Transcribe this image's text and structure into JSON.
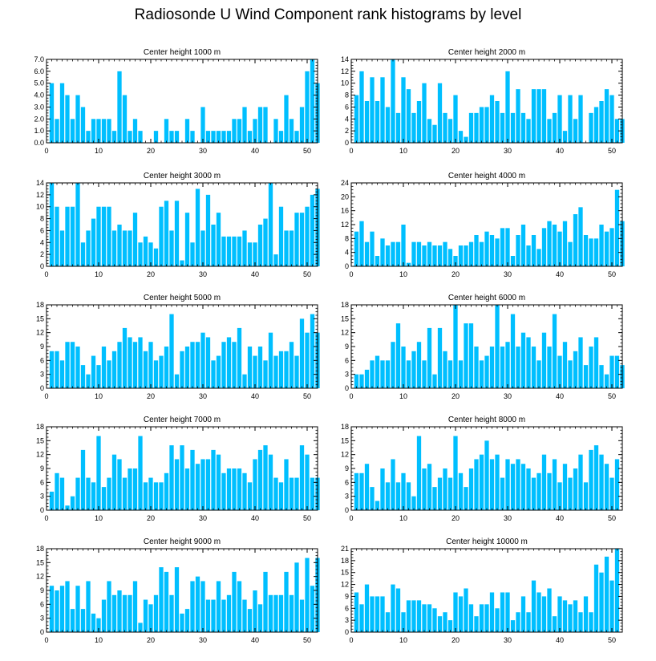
{
  "figure_title": "Radiosonde U Wind Component rank histograms by level",
  "colors": {
    "bar": "#00bfff",
    "axis": "#000000"
  },
  "chart_data": [
    {
      "type": "bar",
      "title": "Center height 1000 m",
      "ylim": [
        0,
        7
      ],
      "yticks": [
        "0.0",
        "1.0",
        "2.0",
        "3.0",
        "4.0",
        "5.0",
        "6.0",
        "7.0"
      ],
      "xlim": [
        0,
        52
      ],
      "xticks": [
        0,
        10,
        20,
        30,
        40,
        50
      ],
      "values": [
        5,
        2,
        5,
        4,
        2,
        4,
        3,
        1,
        2,
        2,
        2,
        2,
        1,
        6,
        4,
        1,
        2,
        1,
        0,
        0,
        1,
        0,
        2,
        1,
        1,
        0,
        2,
        1,
        0,
        3,
        1,
        1,
        1,
        1,
        1,
        2,
        2,
        3,
        1,
        2,
        3,
        3,
        0,
        2,
        1,
        4,
        2,
        1,
        3,
        6,
        7,
        5
      ]
    },
    {
      "type": "bar",
      "title": "Center height 2000 m",
      "ylim": [
        0,
        14
      ],
      "yticks": [
        "0",
        "2",
        "4",
        "6",
        "8",
        "10",
        "12",
        "14"
      ],
      "xlim": [
        0,
        52
      ],
      "xticks": [
        0,
        10,
        20,
        30,
        40,
        50
      ],
      "values": [
        8,
        12,
        7,
        11,
        7,
        11,
        6,
        14,
        5,
        11,
        9,
        5,
        7,
        10,
        4,
        3,
        10,
        5,
        4,
        8,
        2,
        1,
        5,
        5,
        6,
        6,
        8,
        7,
        5,
        12,
        5,
        9,
        5,
        4,
        9,
        9,
        9,
        4,
        5,
        8,
        2,
        8,
        4,
        8,
        0,
        5,
        6,
        7,
        9,
        8,
        4,
        4
      ]
    },
    {
      "type": "bar",
      "title": "Center height 3000 m",
      "ylim": [
        0,
        14
      ],
      "yticks": [
        "0",
        "2",
        "4",
        "6",
        "8",
        "10",
        "12",
        "14"
      ],
      "xlim": [
        0,
        52
      ],
      "xticks": [
        0,
        10,
        20,
        30,
        40,
        50
      ],
      "values": [
        14,
        10,
        6,
        10,
        10,
        14,
        4,
        6,
        8,
        10,
        10,
        10,
        6,
        7,
        6,
        6,
        9,
        4,
        5,
        4,
        3,
        10,
        11,
        6,
        11,
        1,
        9,
        4,
        13,
        6,
        12,
        7,
        9,
        5,
        5,
        5,
        5,
        6,
        4,
        4,
        7,
        8,
        14,
        2,
        10,
        6,
        6,
        9,
        9,
        10,
        12,
        13
      ]
    },
    {
      "type": "bar",
      "title": "Center height 4000 m",
      "ylim": [
        0,
        24
      ],
      "yticks": [
        "0",
        "4",
        "8",
        "12",
        "16",
        "20",
        "24"
      ],
      "xlim": [
        0,
        52
      ],
      "xticks": [
        0,
        10,
        20,
        30,
        40,
        50
      ],
      "values": [
        10,
        13,
        7,
        10,
        3,
        8,
        6,
        7,
        7,
        12,
        1,
        7,
        7,
        6,
        7,
        6,
        6,
        7,
        5,
        3,
        6,
        6,
        7,
        9,
        7,
        10,
        9,
        8,
        11,
        11,
        3,
        9,
        12,
        6,
        9,
        5,
        11,
        13,
        12,
        10,
        13,
        7,
        15,
        17,
        9,
        8,
        8,
        12,
        10,
        11,
        22,
        13
      ]
    },
    {
      "type": "bar",
      "title": "Center height 5000 m",
      "ylim": [
        0,
        18
      ],
      "yticks": [
        "0",
        "3",
        "6",
        "9",
        "12",
        "15",
        "18"
      ],
      "xlim": [
        0,
        52
      ],
      "xticks": [
        0,
        10,
        20,
        30,
        40,
        50
      ],
      "values": [
        8,
        8,
        6,
        10,
        10,
        9,
        5,
        3,
        7,
        5,
        9,
        6,
        8,
        10,
        13,
        11,
        10,
        11,
        8,
        10,
        6,
        7,
        9,
        16,
        3,
        8,
        9,
        10,
        10,
        12,
        11,
        6,
        7,
        10,
        11,
        10,
        13,
        3,
        9,
        7,
        9,
        6,
        12,
        7,
        8,
        8,
        10,
        7,
        15,
        12,
        16,
        12
      ]
    },
    {
      "type": "bar",
      "title": "Center height 6000 m",
      "ylim": [
        0,
        18
      ],
      "yticks": [
        "0",
        "3",
        "6",
        "9",
        "12",
        "15",
        "18"
      ],
      "xlim": [
        0,
        52
      ],
      "xticks": [
        0,
        10,
        20,
        30,
        40,
        50
      ],
      "values": [
        3,
        3,
        4,
        6,
        7,
        6,
        6,
        10,
        14,
        9,
        6,
        8,
        10,
        6,
        13,
        3,
        13,
        8,
        6,
        18,
        6,
        14,
        14,
        9,
        6,
        7,
        9,
        18,
        9,
        10,
        16,
        9,
        12,
        11,
        9,
        6,
        12,
        9,
        16,
        7,
        10,
        6,
        8,
        11,
        5,
        9,
        11,
        5,
        3,
        7,
        7,
        5
      ]
    },
    {
      "type": "bar",
      "title": "Center height 7000 m",
      "ylim": [
        0,
        18
      ],
      "yticks": [
        "0",
        "3",
        "6",
        "9",
        "12",
        "15",
        "18"
      ],
      "xlim": [
        0,
        52
      ],
      "xticks": [
        0,
        10,
        20,
        30,
        40,
        50
      ],
      "values": [
        4,
        8,
        7,
        1,
        3,
        7,
        13,
        7,
        6,
        16,
        5,
        7,
        12,
        11,
        7,
        9,
        9,
        16,
        6,
        7,
        6,
        6,
        8,
        14,
        11,
        14,
        9,
        13,
        10,
        11,
        11,
        13,
        12,
        8,
        9,
        9,
        9,
        8,
        6,
        11,
        13,
        14,
        12,
        7,
        6,
        11,
        7,
        7,
        14,
        12,
        7,
        7
      ]
    },
    {
      "type": "bar",
      "title": "Center height 8000 m",
      "ylim": [
        0,
        18
      ],
      "yticks": [
        "0",
        "3",
        "6",
        "9",
        "12",
        "15",
        "18"
      ],
      "xlim": [
        0,
        52
      ],
      "xticks": [
        0,
        10,
        20,
        30,
        40,
        50
      ],
      "values": [
        8,
        8,
        10,
        5,
        2,
        9,
        6,
        11,
        6,
        8,
        6,
        3,
        16,
        9,
        10,
        5,
        7,
        9,
        7,
        16,
        8,
        5,
        9,
        11,
        12,
        15,
        11,
        12,
        7,
        11,
        10,
        11,
        10,
        9,
        7,
        8,
        12,
        8,
        11,
        6,
        10,
        7,
        9,
        12,
        6,
        13,
        14,
        12,
        10,
        7,
        11,
        0
      ]
    },
    {
      "type": "bar",
      "title": "Center height 9000 m",
      "ylim": [
        0,
        18
      ],
      "yticks": [
        "0",
        "3",
        "6",
        "9",
        "12",
        "15",
        "18"
      ],
      "xlim": [
        0,
        52
      ],
      "xticks": [
        0,
        10,
        20,
        30,
        40,
        50
      ],
      "values": [
        10,
        9,
        10,
        11,
        5,
        10,
        5,
        11,
        4,
        3,
        7,
        11,
        8,
        9,
        8,
        8,
        11,
        2,
        7,
        6,
        8,
        14,
        13,
        8,
        14,
        4,
        5,
        11,
        12,
        11,
        7,
        7,
        11,
        7,
        8,
        13,
        11,
        7,
        5,
        9,
        6,
        13,
        8,
        8,
        8,
        13,
        8,
        15,
        7,
        16,
        10,
        16
      ]
    },
    {
      "type": "bar",
      "title": "Center height 10000 m",
      "ylim": [
        0,
        21
      ],
      "yticks": [
        "0",
        "3",
        "6",
        "9",
        "12",
        "15",
        "18",
        "21"
      ],
      "xlim": [
        0,
        52
      ],
      "xticks": [
        0,
        10,
        20,
        30,
        40,
        50
      ],
      "values": [
        10,
        7,
        12,
        9,
        9,
        9,
        5,
        12,
        11,
        5,
        8,
        8,
        8,
        7,
        7,
        6,
        4,
        5,
        3,
        10,
        9,
        11,
        7,
        4,
        7,
        7,
        10,
        6,
        10,
        10,
        3,
        5,
        9,
        5,
        13,
        10,
        9,
        11,
        4,
        9,
        8,
        7,
        8,
        5,
        9,
        5,
        17,
        15,
        19,
        13,
        21,
        0
      ]
    }
  ]
}
